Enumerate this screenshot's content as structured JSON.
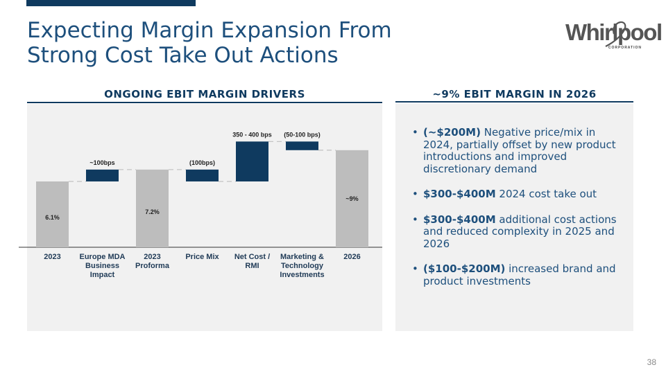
{
  "slide": {
    "title_line1": "Expecting Margin Expansion From",
    "title_line2": "Strong Cost Take Out Actions",
    "page_number": "38"
  },
  "logo": {
    "word": "Whirlpool",
    "sub": "CORPORATION"
  },
  "left_panel": {
    "heading": "ONGOING EBIT MARGIN DRIVERS"
  },
  "right_panel": {
    "heading": "~9% EBIT MARGIN IN 2026",
    "bullets": [
      {
        "bold": "(~$200M)",
        "text": " Negative price/mix in 2024, partially offset by new product introductions and improved discretionary demand"
      },
      {
        "bold": "$300-$400M",
        "text": " 2024 cost take out"
      },
      {
        "bold": "$300-$400M",
        "text": " additional cost actions and reduced complexity in 2025 and 2026"
      },
      {
        "bold": "($100-$200M)",
        "text": " increased brand and product investments"
      }
    ]
  },
  "colors": {
    "total_bar": "#bdbdbd",
    "change_bar": "#0f3a5f",
    "accent": "#1d4f7c",
    "panel_bg": "#f1f1f1"
  },
  "chart_data": {
    "type": "bar",
    "subtype": "waterfall",
    "unit": "EBIT margin %",
    "categories": [
      "2023",
      "Europe MDA Business Impact",
      "2023 Proforma",
      "Price Mix",
      "Net Cost / RMI",
      "Marketing & Technology Investments",
      "2026"
    ],
    "category_lines": [
      [
        "2023"
      ],
      [
        "Europe MDA",
        "Business",
        "Impact"
      ],
      [
        "2023",
        "Proforma"
      ],
      [
        "Price Mix"
      ],
      [
        "Net Cost /",
        "RMI"
      ],
      [
        "Marketing &",
        "Technology",
        "Investments"
      ],
      [
        "2026"
      ]
    ],
    "bars": [
      {
        "kind": "total",
        "start": 0,
        "end": 6.1,
        "label": "6.1%"
      },
      {
        "kind": "delta",
        "start": 6.1,
        "end": 7.2,
        "label": "~100bps"
      },
      {
        "kind": "total",
        "start": 0,
        "end": 7.2,
        "label": "7.2%"
      },
      {
        "kind": "delta",
        "start": 7.2,
        "end": 6.1,
        "label": "(100bps)"
      },
      {
        "kind": "delta",
        "start": 6.1,
        "end": 9.8,
        "label": "350 - 400 bps"
      },
      {
        "kind": "delta",
        "start": 9.8,
        "end": 9.0,
        "label": "(50-100 bps)"
      },
      {
        "kind": "total",
        "start": 0,
        "end": 9.0,
        "label": "~9%"
      }
    ],
    "ylim": [
      0,
      10.4
    ],
    "grid": false,
    "legend": "none",
    "connectors": "dashed"
  }
}
